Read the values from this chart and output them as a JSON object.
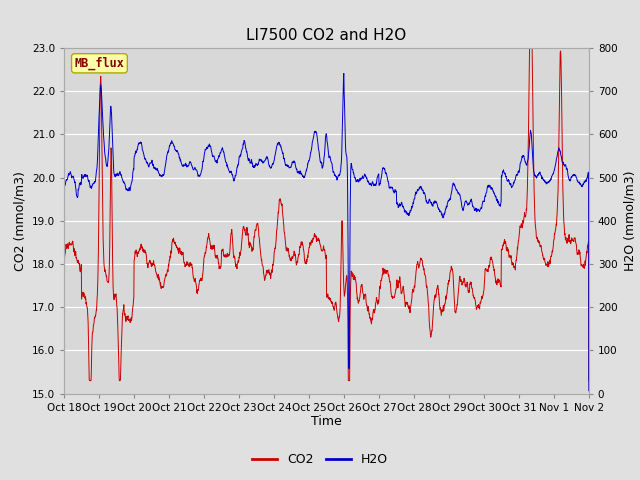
{
  "title": "LI7500 CO2 and H2O",
  "xlabel": "Time",
  "ylabel_left": "CO2 (mmol/m3)",
  "ylabel_right": "H2O (mmol/m3)",
  "ylim_left": [
    15.0,
    23.0
  ],
  "ylim_right": [
    0,
    800
  ],
  "yticks_left": [
    15.0,
    16.0,
    17.0,
    18.0,
    19.0,
    20.0,
    21.0,
    22.0,
    23.0
  ],
  "yticks_right": [
    0,
    100,
    200,
    300,
    400,
    500,
    600,
    700,
    800
  ],
  "xtick_labels": [
    "Oct 18",
    "Oct 19",
    "Oct 20",
    "Oct 21",
    "Oct 22",
    "Oct 23",
    "Oct 24",
    "Oct 25",
    "Oct 26",
    "Oct 27",
    "Oct 28",
    "Oct 29",
    "Oct 30",
    "Oct 31",
    "Nov 1",
    "Nov 2"
  ],
  "co2_color": "#cc0000",
  "h2o_color": "#0000cc",
  "fig_facecolor": "#e0e0e0",
  "plot_facecolor": "#d8d8d8",
  "annotation_text": "MB_flux",
  "annotation_bg": "#ffffaa",
  "annotation_border": "#aaaa00",
  "legend_co2": "CO2",
  "legend_h2o": "H2O",
  "title_fontsize": 11,
  "axis_label_fontsize": 9,
  "tick_fontsize": 7.5,
  "legend_fontsize": 9,
  "grid_color": "#ffffff",
  "n_points": 2000
}
